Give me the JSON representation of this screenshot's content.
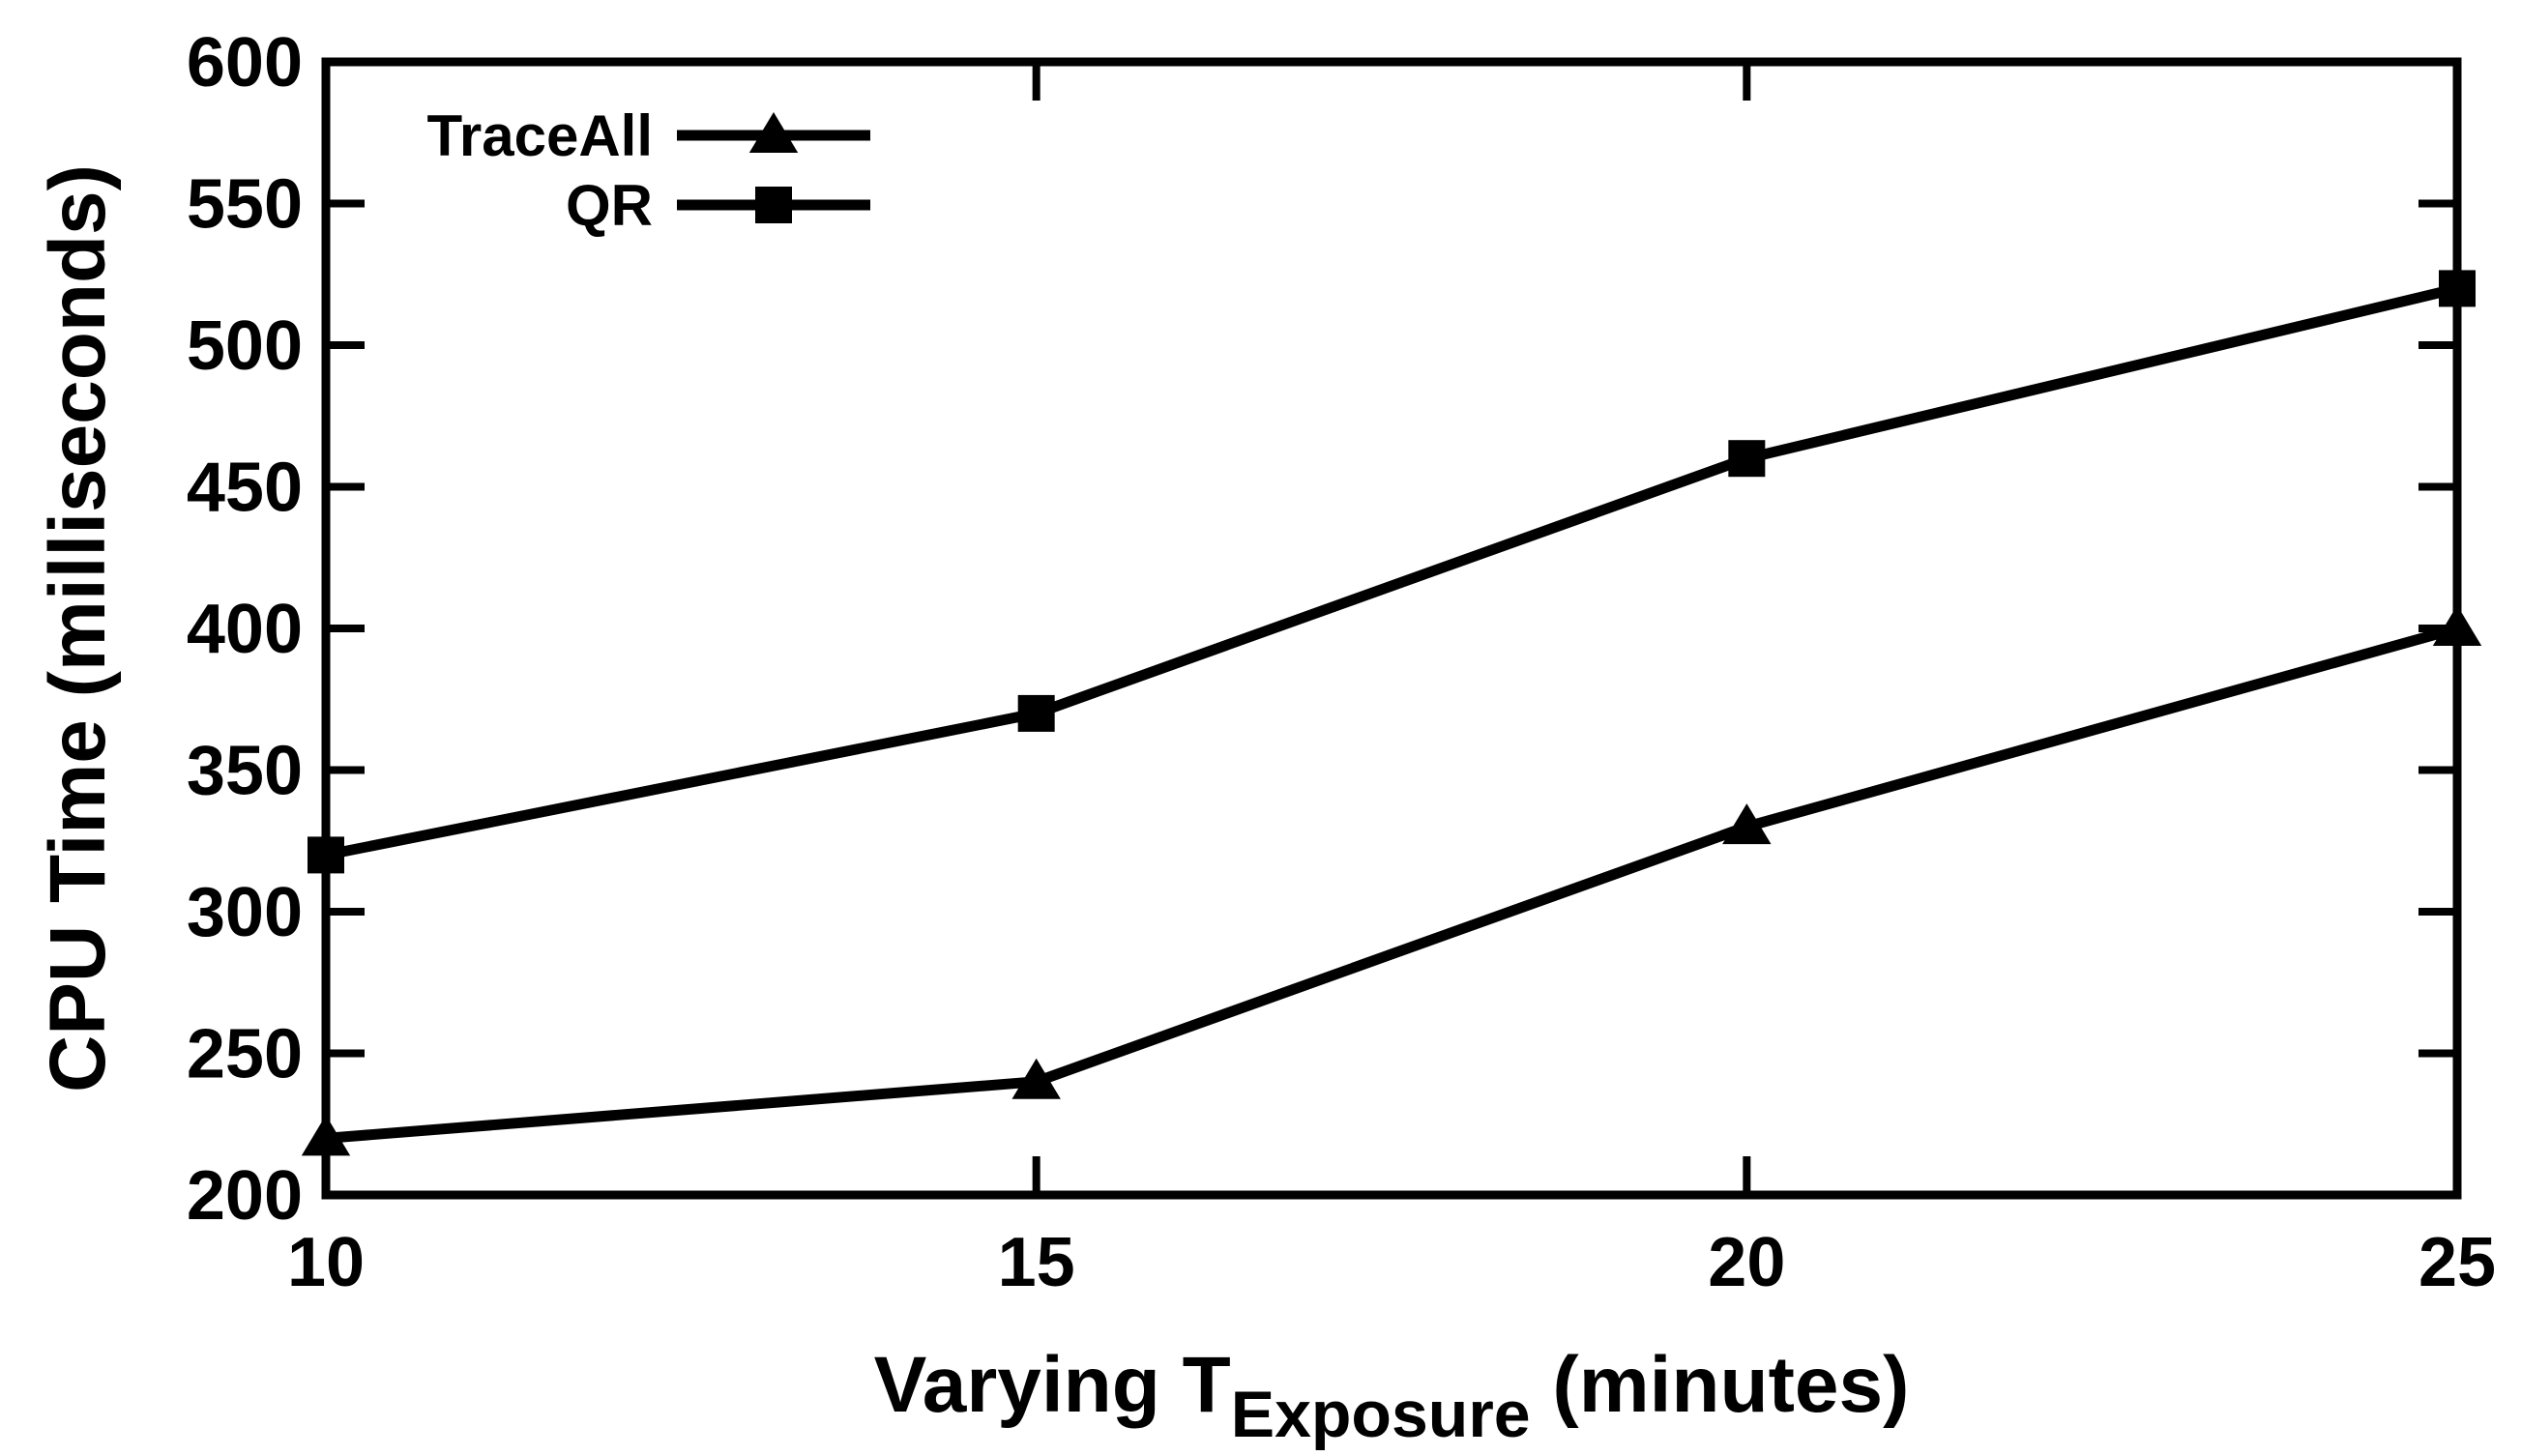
{
  "chart_data": {
    "type": "line",
    "x": [
      10,
      15,
      20,
      25
    ],
    "series": [
      {
        "name": "TraceAll",
        "marker": "triangle",
        "values": [
          220,
          240,
          330,
          400
        ]
      },
      {
        "name": "QR",
        "marker": "square",
        "values": [
          320,
          370,
          460,
          520
        ]
      }
    ],
    "title": "",
    "ylabel": "CPU Time (milliseconds)",
    "xlabel": {
      "main": "Varying T",
      "subscript": "Exposure",
      "suffix": " (minutes)"
    },
    "xlim": [
      10,
      25
    ],
    "ylim": [
      200,
      600
    ],
    "xticks": [
      "10",
      "15",
      "20",
      "25"
    ],
    "yticks": [
      "200",
      "250",
      "300",
      "350",
      "400",
      "450",
      "500",
      "550",
      "600"
    ],
    "grid": false,
    "legend_position": "top-left",
    "line_color": "#000000"
  }
}
